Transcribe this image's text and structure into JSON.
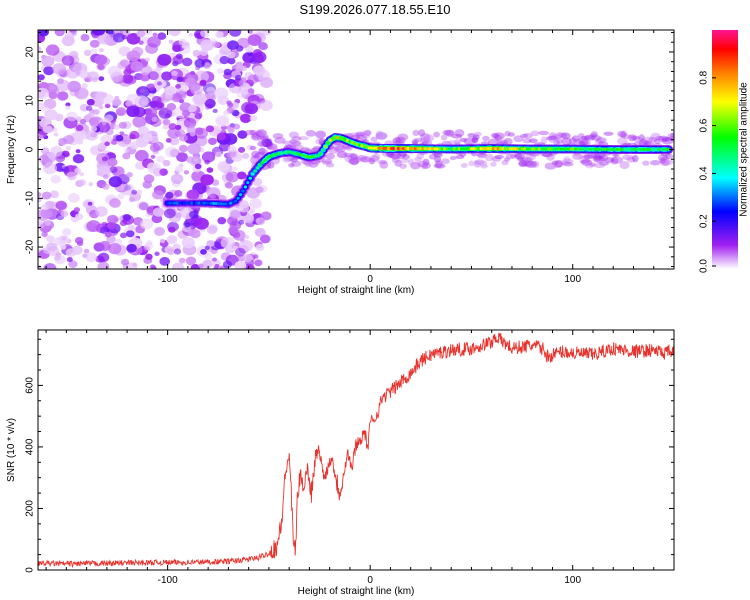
{
  "title": "S199.2026.077.18.55.E10",
  "chart_data": [
    {
      "type": "heatmap",
      "title": "S199.2026.077.18.55.E10",
      "xlabel": "Height of straight line (km)",
      "ylabel": "Frequency (Hz)",
      "xlim": [
        -164,
        150
      ],
      "ylim": [
        -24.5,
        24.5
      ],
      "xticks": [
        -100,
        0,
        100
      ],
      "xtick_labels": [
        "-100",
        "0",
        "100"
      ],
      "yticks": [
        -20,
        -10,
        0,
        10,
        20
      ],
      "ytick_labels": [
        "-20",
        "-10",
        "0",
        "10",
        "20"
      ],
      "noise_region_x": [
        -164,
        -55
      ],
      "ridge": {
        "x": [
          -100,
          -90,
          -80,
          -70,
          -66,
          -62,
          -58,
          -54,
          -50,
          -45,
          -40,
          -35,
          -30,
          -25,
          -20,
          -17,
          -14,
          -10,
          -6,
          -2,
          0,
          10,
          20,
          40,
          60,
          80,
          100,
          120,
          140,
          148
        ],
        "freq": [
          -11,
          -11,
          -11,
          -11.2,
          -10.5,
          -8,
          -5,
          -3,
          -1.5,
          -0.8,
          -0.5,
          -1,
          -1.6,
          -1.2,
          1.8,
          2.5,
          2.3,
          1.6,
          1.0,
          0.6,
          0.3,
          0.2,
          0.2,
          0.1,
          0.2,
          0.1,
          0.1,
          0.0,
          0.0,
          0.0
        ],
        "amplitude": [
          0.3,
          0.25,
          0.3,
          0.3,
          0.3,
          0.35,
          0.4,
          0.5,
          0.55,
          0.5,
          0.45,
          0.5,
          0.55,
          0.45,
          0.65,
          0.7,
          0.65,
          0.6,
          0.6,
          0.7,
          0.75,
          0.85,
          0.8,
          0.55,
          0.75,
          0.6,
          0.55,
          0.5,
          0.5,
          0.5
        ]
      },
      "colorbar": {
        "label": "Normalized spectral amplitude",
        "range": [
          0,
          1
        ],
        "ticks": [
          0.0,
          0.2,
          0.4,
          0.6,
          0.8
        ],
        "tick_labels": [
          "0.0",
          "0.2",
          "0.4",
          "0.6",
          "0.8"
        ],
        "colors": [
          "#ffffff",
          "#a020f0",
          "#0000ff",
          "#00ffff",
          "#00ff00",
          "#ffff00",
          "#ff7f00",
          "#ff0000",
          "#ff1493"
        ]
      }
    },
    {
      "type": "line",
      "title": "",
      "xlabel": "Height of straight line (km)",
      "ylabel": "SNR (10 * v/v)",
      "xlim": [
        -164,
        150
      ],
      "ylim": [
        0,
        780
      ],
      "xticks": [
        -100,
        0,
        100
      ],
      "xtick_labels": [
        "-100",
        "0",
        "100"
      ],
      "yticks": [
        0,
        200,
        400,
        600
      ],
      "ytick_labels": [
        "0",
        "200",
        "400",
        "600"
      ],
      "color": "#e8332d",
      "series": [
        {
          "name": "SNR",
          "x": [
            -164,
            -150,
            -130,
            -110,
            -90,
            -70,
            -60,
            -55,
            -50,
            -46,
            -44,
            -42,
            -40,
            -39,
            -38,
            -37,
            -36,
            -35,
            -33,
            -31,
            -29,
            -27,
            -25,
            -23,
            -21,
            -19,
            -17,
            -15,
            -13,
            -11,
            -9,
            -7,
            -5,
            -3,
            -1,
            0,
            3,
            6,
            10,
            15,
            20,
            25,
            30,
            40,
            50,
            60,
            62,
            65,
            70,
            80,
            85,
            88,
            90,
            95,
            100,
            110,
            120,
            130,
            140,
            145,
            150
          ],
          "y": [
            22,
            20,
            22,
            24,
            25,
            28,
            35,
            40,
            55,
            80,
            140,
            300,
            380,
            250,
            100,
            50,
            220,
            300,
            280,
            330,
            250,
            370,
            390,
            300,
            330,
            370,
            300,
            250,
            320,
            380,
            330,
            410,
            420,
            450,
            400,
            480,
            500,
            560,
            580,
            610,
            640,
            680,
            700,
            715,
            720,
            740,
            760,
            745,
            720,
            730,
            720,
            690,
            700,
            710,
            705,
            700,
            720,
            710,
            715,
            705,
            710
          ]
        }
      ]
    }
  ]
}
